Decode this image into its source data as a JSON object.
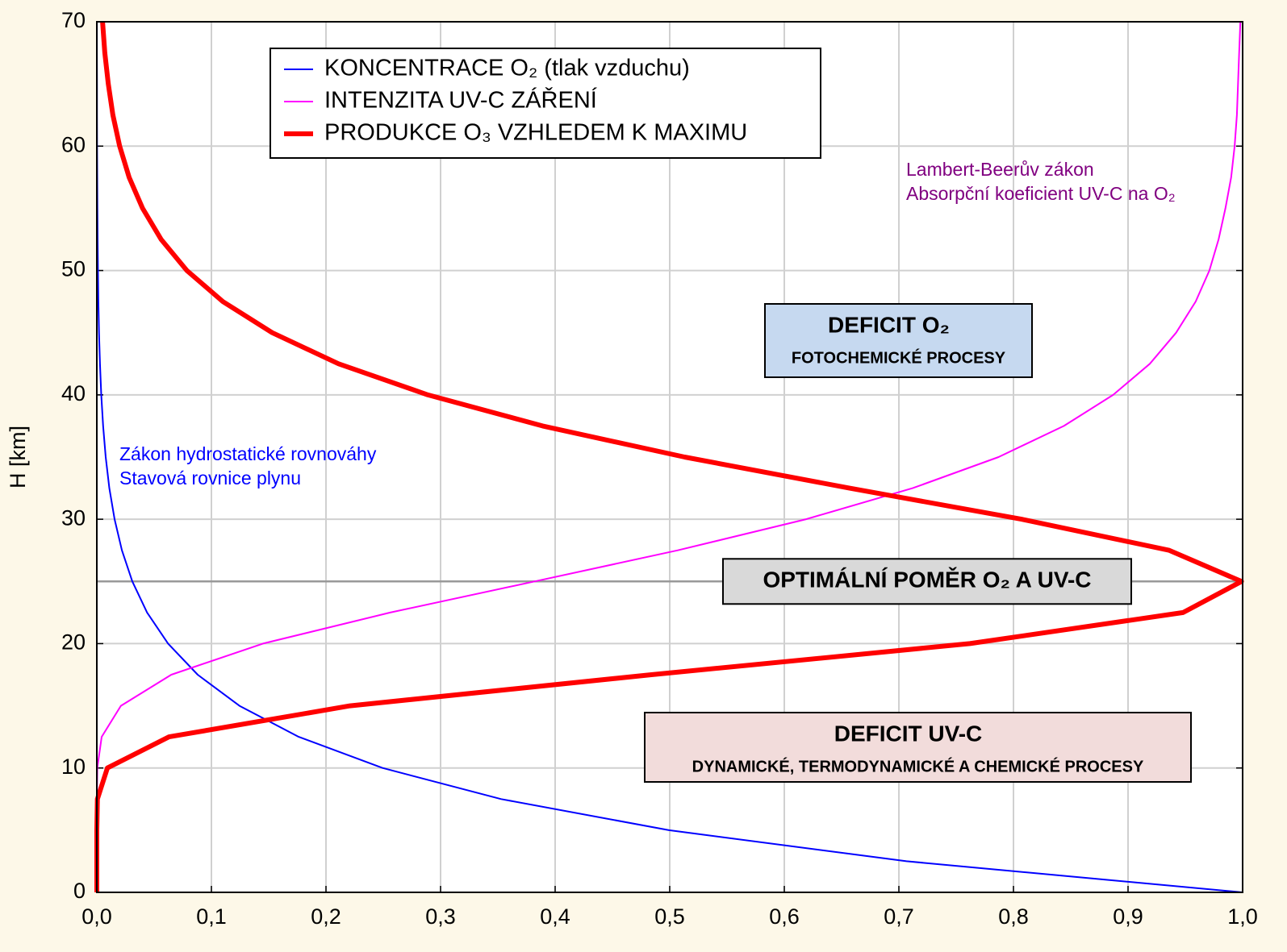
{
  "chart_data": {
    "type": "line",
    "ylabel": "H [km]",
    "y": [
      0,
      2.5,
      5,
      7.5,
      10,
      12.5,
      15,
      17.5,
      20,
      22.5,
      25,
      27.5,
      30,
      32.5,
      35,
      37.5,
      40,
      42.5,
      45,
      47.5,
      50,
      52.5,
      55,
      57.5,
      60,
      62.5,
      65,
      67.5,
      70
    ],
    "series": [
      {
        "name": "KONCENTRACE O₂ (tlak vzduchu)",
        "color": "#0000ff",
        "line_width": 2,
        "values": [
          1,
          0.7066,
          0.4994,
          0.3529,
          0.2494,
          0.1762,
          0.1245,
          0.088,
          0.0622,
          0.0439,
          0.031,
          0.0219,
          0.0155,
          0.01095,
          0.00774,
          0.00547,
          0.00386,
          0.00273,
          0.00193,
          0.00136,
          0.00096,
          0.00068,
          0.00048,
          0.00034,
          0.00024,
          0.00017,
          0.00012,
          8e-05,
          6e-05
        ]
      },
      {
        "name": "INTENZITA UV-C ZÁŘENÍ",
        "color": "#ff00ff",
        "line_width": 2,
        "values": [
          0,
          0,
          0,
          0,
          0.0004,
          0.0042,
          0.021,
          0.065,
          0.145,
          0.256,
          0.382,
          0.507,
          0.619,
          0.712,
          0.787,
          0.844,
          0.887,
          0.919,
          0.942,
          0.959,
          0.971,
          0.979,
          0.985,
          0.99,
          0.993,
          0.995,
          0.996,
          0.997,
          0.998
        ]
      },
      {
        "name": "PRODUKCE O₃ VZHLEDEM K MAXIMU",
        "color": "#ff0000",
        "line_width": 6,
        "values": [
          0,
          0,
          0,
          0.0005,
          0.0092,
          0.063,
          0.221,
          0.484,
          0.762,
          0.948,
          0.999,
          0.936,
          0.807,
          0.657,
          0.513,
          0.389,
          0.289,
          0.211,
          0.153,
          0.11,
          0.0786,
          0.0561,
          0.0399,
          0.0282,
          0.0199,
          0.014,
          0.01,
          0.007,
          0.005
        ]
      }
    ],
    "xlim": [
      0,
      1
    ],
    "ylim": [
      0,
      70
    ],
    "xticks": [
      {
        "value": 0,
        "label": "0,0"
      },
      {
        "value": 0.1,
        "label": "0,1"
      },
      {
        "value": 0.2,
        "label": "0,2"
      },
      {
        "value": 0.3,
        "label": "0,3"
      },
      {
        "value": 0.4,
        "label": "0,4"
      },
      {
        "value": 0.5,
        "label": "0,5"
      },
      {
        "value": 0.6,
        "label": "0,6"
      },
      {
        "value": 0.7,
        "label": "0,7"
      },
      {
        "value": 0.8,
        "label": "0,8"
      },
      {
        "value": 0.9,
        "label": "0,9"
      },
      {
        "value": 1,
        "label": "1,0"
      }
    ],
    "yticks": [
      0,
      10,
      20,
      30,
      40,
      50,
      60,
      70
    ],
    "grid": true,
    "reference_line": {
      "value": 25,
      "label": "OPTIMÁLNÍ POMĚR O₂ A UV-C",
      "color": "#d9d9d9"
    },
    "annotations": [
      {
        "lines": [
          "Zákon hydrostatické rovnováhy",
          "Stavová rovnice plynu"
        ],
        "color": "#0000ff"
      },
      {
        "lines": [
          "Lambert-Beerův zákon",
          "Absorpční koeficient UV-C na O₂"
        ],
        "color": "#800080"
      }
    ],
    "boxes": [
      {
        "title": "DEFICIT O₂",
        "subtitle": "FOTOCHEMICKÉ PROCESY",
        "color": "#c6d9f0"
      },
      {
        "title": "DEFICIT UV-C",
        "subtitle": "DYNAMICKÉ, TERMODYNAMICKÉ A CHEMICKÉ PROCESY",
        "color": "#f2dcdb"
      }
    ]
  }
}
